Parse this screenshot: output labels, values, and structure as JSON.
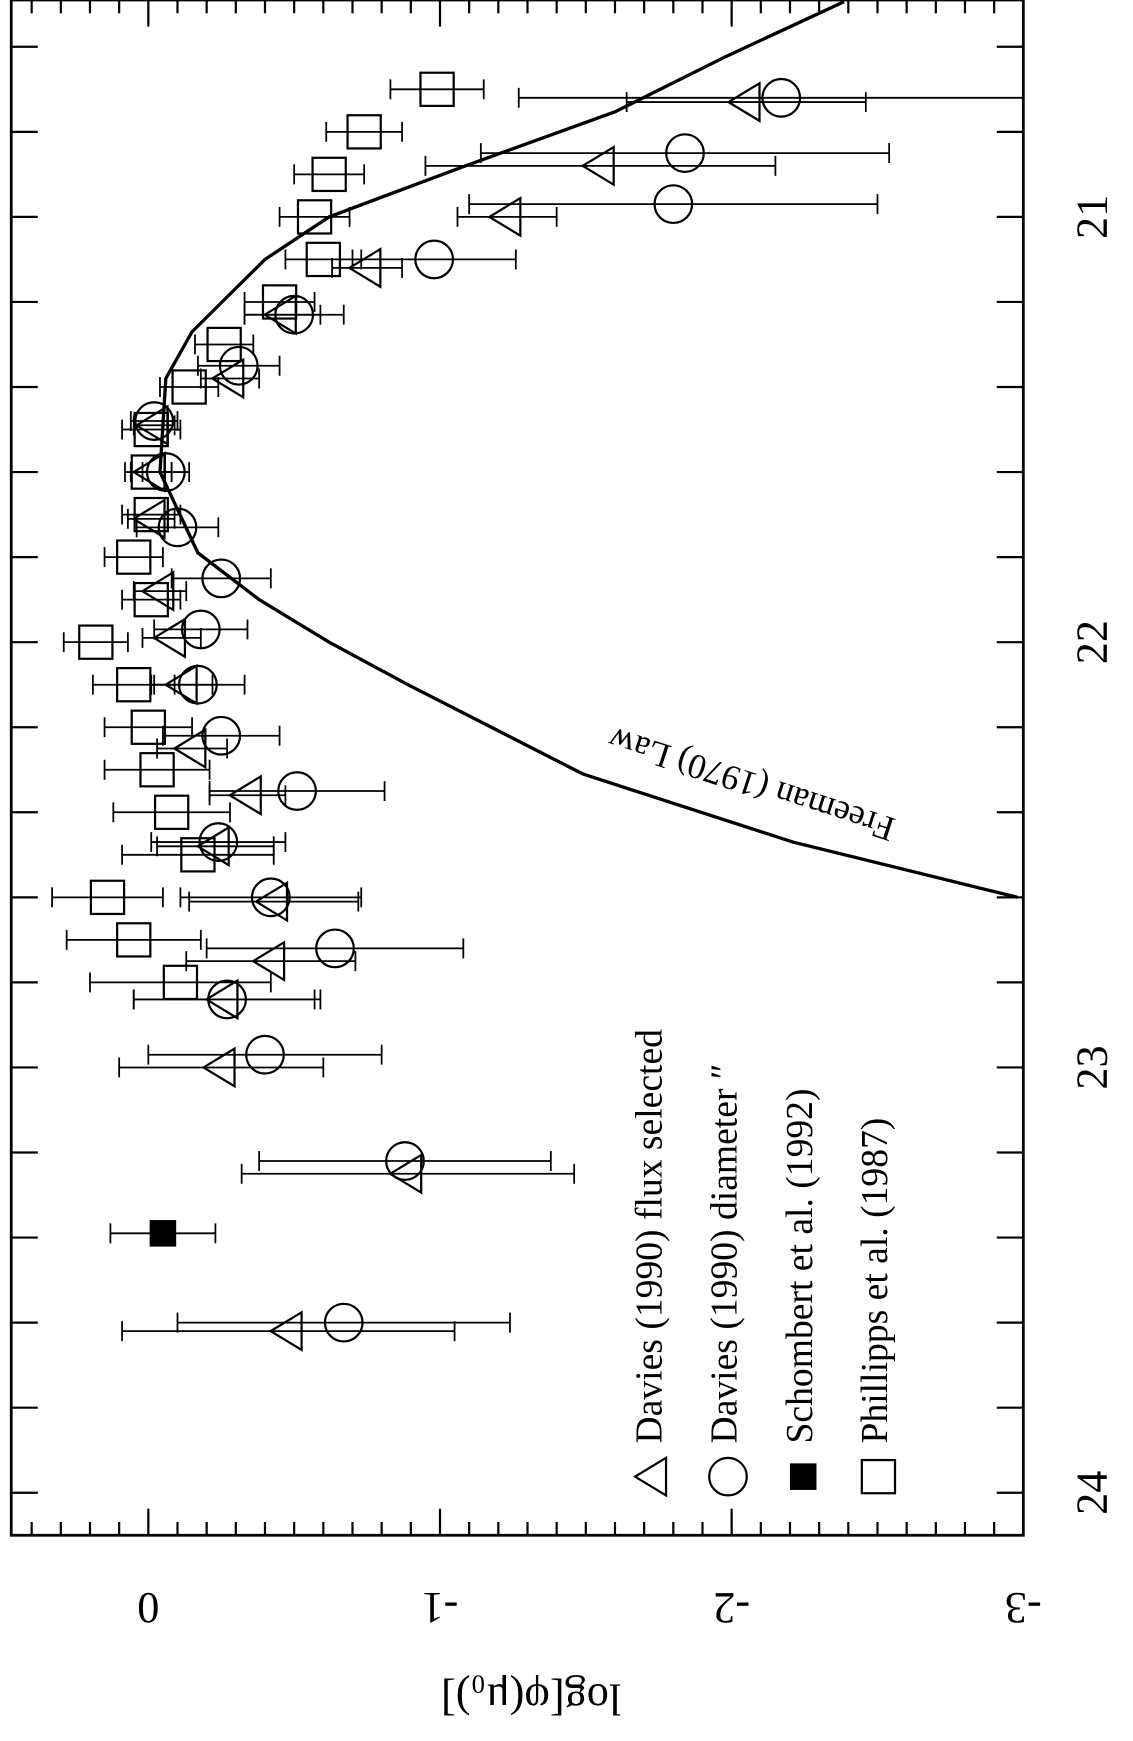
{
  "chart_data": {
    "type": "scatter",
    "ylabel": "log[φ(μ₀)]",
    "xlim": [
      20.49,
      24.1
    ],
    "xticks": [
      21,
      22,
      23,
      24
    ],
    "xminorticks": [
      20.6,
      20.8,
      21.2,
      21.4,
      21.6,
      21.8,
      22.2,
      22.4,
      22.6,
      22.8,
      23.2,
      23.4,
      23.6,
      23.8
    ],
    "ylim": [
      0.47,
      -3
    ],
    "yticks": [
      0,
      -1,
      -2,
      -3
    ],
    "yminorticks": [
      0.4,
      0.3,
      0.2,
      0.1,
      -0.1,
      -0.2,
      -0.3,
      -0.4,
      -0.5,
      -0.6,
      -0.7,
      -0.8,
      -0.9,
      -1.1,
      -1.2,
      -1.3,
      -1.4,
      -1.5,
      -1.6,
      -1.7,
      -1.8,
      -1.9,
      -2.1,
      -2.2,
      -2.3,
      -2.4,
      -2.5,
      -2.6,
      -2.7,
      -2.8,
      -2.9
    ],
    "legend": "lower right",
    "series": [
      {
        "name": "Davies (1990) flux selected",
        "marker": "triangle",
        "color": "#000000",
        "x": [
          20.73,
          20.88,
          21.0,
          21.12,
          21.23,
          21.38,
          21.49,
          21.6,
          21.71,
          21.88,
          21.99,
          22.1,
          22.25,
          22.36,
          22.48,
          22.61,
          22.75,
          22.84,
          23.0,
          23.25,
          23.62
        ],
        "values": [
          -2.05,
          -1.55,
          -1.23,
          -0.75,
          -0.46,
          -0.28,
          -0.02,
          -0.01,
          -0.01,
          -0.04,
          -0.08,
          -0.12,
          -0.15,
          -0.34,
          -0.23,
          -0.43,
          -0.42,
          -0.26,
          -0.25,
          -0.89,
          -0.48
        ],
        "errors": [
          0.41,
          0.6,
          0.17,
          0.12,
          0.13,
          0.1,
          0.07,
          0.07,
          0.08,
          0.09,
          0.1,
          0.1,
          0.12,
          0.13,
          0.2,
          0.29,
          0.29,
          0.31,
          0.35,
          0.57,
          0.57
        ]
      },
      {
        "name": "Davies (1990) diameter ″",
        "marker": "circle",
        "color": "#000000",
        "x": [
          20.72,
          20.85,
          20.97,
          21.1,
          21.23,
          21.35,
          21.48,
          21.6,
          21.73,
          21.85,
          21.97,
          22.1,
          22.22,
          22.35,
          22.47,
          22.6,
          22.72,
          22.84,
          22.97,
          23.22,
          23.6
        ],
        "values": [
          -2.17,
          -1.84,
          -1.8,
          -0.98,
          -0.5,
          -0.31,
          -0.02,
          -0.06,
          -0.1,
          -0.25,
          -0.18,
          -0.17,
          -0.25,
          -0.51,
          -0.24,
          -0.42,
          -0.64,
          -0.27,
          -0.4,
          -0.88,
          -0.67
        ],
        "errors": [
          0.9,
          0.7,
          0.7,
          0.28,
          0.17,
          0.14,
          0.08,
          0.08,
          0.14,
          0.17,
          0.16,
          0.16,
          0.2,
          0.3,
          0.23,
          0.31,
          0.44,
          0.32,
          0.4,
          0.5,
          0.57
        ]
      },
      {
        "name": "Schombert et al. (1992)",
        "marker": "filled-square",
        "color": "#000000",
        "x": [
          23.39
        ],
        "values": [
          -0.05
        ],
        "errors": [
          0.18
        ]
      },
      {
        "name": "Phillipps et al. (1987)",
        "marker": "square",
        "color": "#000000",
        "x": [
          20.7,
          20.8,
          20.9,
          21.0,
          21.1,
          21.2,
          21.3,
          21.4,
          21.5,
          21.6,
          21.7,
          21.8,
          21.9,
          22.0,
          22.1,
          22.2,
          22.3,
          22.4,
          22.5,
          22.6,
          22.7,
          22.8
        ],
        "values": [
          -0.99,
          -0.74,
          -0.62,
          -0.57,
          -0.6,
          -0.45,
          -0.26,
          -0.14,
          -0.01,
          0,
          -0.01,
          0.05,
          -0.01,
          0.18,
          0.05,
          0,
          -0.03,
          -0.08,
          -0.17,
          0.14,
          0.05,
          -0.11
        ],
        "errors": [
          0.16,
          0.13,
          0.12,
          0.12,
          0.13,
          0.12,
          0.1,
          0.1,
          0.1,
          0.08,
          0.1,
          0.1,
          0.1,
          0.11,
          0.14,
          0.15,
          0.18,
          0.2,
          0.26,
          0.19,
          0.23,
          0.31
        ]
      }
    ],
    "curve": {
      "name": "Freeman (1970) Law",
      "color": "#000000",
      "x": [
        20.494,
        20.623,
        20.753,
        20.883,
        21.0,
        21.1,
        21.27,
        21.38,
        21.6,
        21.79,
        21.9,
        22.0,
        22.1,
        22.31,
        22.47,
        22.6
      ],
      "values": [
        -2.385,
        -1.98,
        -1.6,
        -1.075,
        -0.62,
        -0.4,
        -0.15,
        -0.06,
        -0.04,
        -0.17,
        -0.38,
        -0.62,
        -0.89,
        -1.49,
        -2.21,
        -2.98
      ]
    }
  }
}
